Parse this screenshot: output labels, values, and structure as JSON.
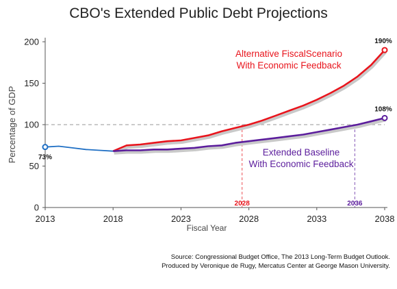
{
  "chart_data": {
    "type": "line",
    "title": "CBO's Extended Public Debt Projections",
    "xlabel": "Fiscal Year",
    "ylabel": "Percentage of GDP",
    "xlim": [
      2013,
      2038
    ],
    "ylim": [
      0,
      200
    ],
    "xticks": [
      "2013",
      "2018",
      "2023",
      "2028",
      "2033",
      "2038"
    ],
    "yticks": [
      "0",
      "50",
      "100",
      "150",
      "200"
    ],
    "reference_line": {
      "y": 100,
      "style": "dashed"
    },
    "series": [
      {
        "key": "historical",
        "color": "#1f6fc4",
        "x": [
          2013,
          2014,
          2015,
          2016,
          2017,
          2018
        ],
        "y": [
          73,
          74,
          72,
          70,
          69,
          68
        ]
      },
      {
        "key": "alternative",
        "name_lines": [
          "Alternative FiscalScenario",
          "With Economic Feedback"
        ],
        "color": "#e8141c",
        "x": [
          2018,
          2019,
          2020,
          2021,
          2022,
          2023,
          2024,
          2025,
          2026,
          2027,
          2028,
          2029,
          2030,
          2031,
          2032,
          2033,
          2034,
          2035,
          2036,
          2037,
          2038
        ],
        "y": [
          68,
          75,
          76,
          78,
          80,
          81,
          84,
          87,
          92,
          96,
          100,
          105,
          111,
          117,
          123,
          130,
          138,
          147,
          158,
          172,
          190
        ]
      },
      {
        "key": "baseline",
        "name_lines": [
          "Extended Baseline",
          "With Economic Feedback"
        ],
        "color": "#5b1d9c",
        "x": [
          2018,
          2019,
          2020,
          2021,
          2022,
          2023,
          2024,
          2025,
          2026,
          2027,
          2028,
          2029,
          2030,
          2031,
          2032,
          2033,
          2034,
          2035,
          2036,
          2037,
          2038
        ],
        "y": [
          68,
          69,
          69,
          70,
          70,
          71,
          72,
          74,
          75,
          78,
          80,
          82,
          84,
          86,
          88,
          91,
          94,
          97,
          100,
          104,
          108
        ]
      }
    ],
    "endpoint_labels": [
      {
        "key": "start",
        "series": "historical",
        "x": 2013,
        "y": 73,
        "label": "73%"
      },
      {
        "key": "alt_end",
        "series": "alternative",
        "x": 2038,
        "y": 190,
        "label": "190%"
      },
      {
        "key": "base_end",
        "series": "baseline",
        "x": 2038,
        "y": 108,
        "label": "108%"
      }
    ],
    "crossover_markers": [
      {
        "key": "cross_alt",
        "x": 2027.5,
        "label": "2028",
        "color": "#e8141c"
      },
      {
        "key": "cross_base",
        "x": 2035.8,
        "label": "2036",
        "color": "#5b1d9c"
      }
    ],
    "grid": false,
    "source_lines": [
      "Source: Congressional Budget Office, The 2013 Long-Term Budget Outlook.",
      "Produced by Veronique de Rugy, Mercatus Center at George Mason University."
    ]
  }
}
